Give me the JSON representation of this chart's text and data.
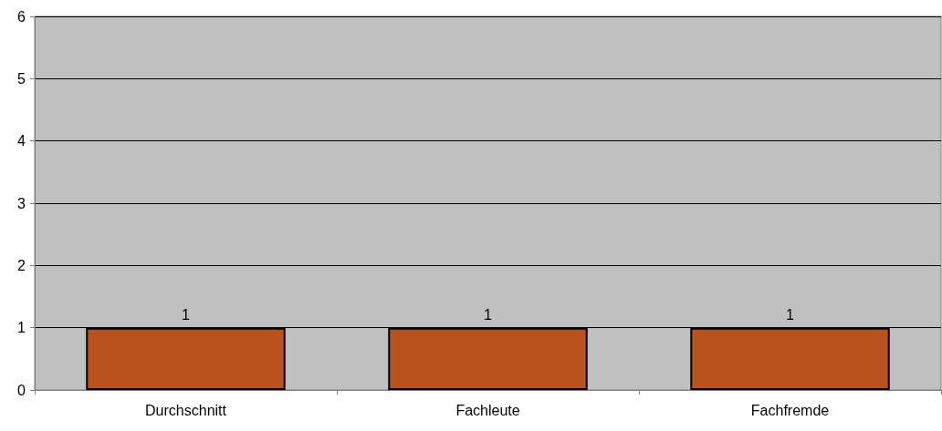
{
  "chart_data": {
    "type": "bar",
    "categories": [
      "Durchschnitt",
      "Fachleute",
      "Fachfremde"
    ],
    "values": [
      1,
      1,
      1
    ],
    "color": "#b8521e",
    "ylim": [
      0,
      6
    ],
    "yticks": [
      0,
      1,
      2,
      3,
      4,
      5,
      6
    ],
    "grid": "y",
    "data_labels": true
  }
}
